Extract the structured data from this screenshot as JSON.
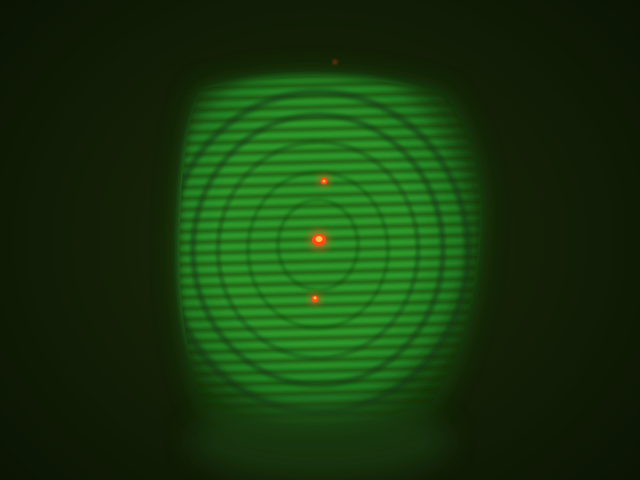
{
  "scene": {
    "subject": "laser-interference-pattern",
    "colors": {
      "background": "#0f1a05",
      "beam": "#3cc13a",
      "beam_edge": "#1f6a19",
      "fringe_dark": "#123c10",
      "spot": "#ff4a1a",
      "spot_core": "#ffd24a"
    },
    "spots": [
      {
        "name": "upper-spot"
      },
      {
        "name": "center-spot"
      },
      {
        "name": "lower-spot"
      }
    ]
  }
}
